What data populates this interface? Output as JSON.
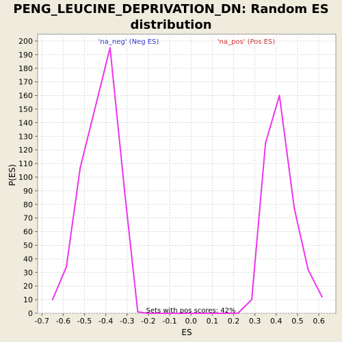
{
  "chart_data": {
    "type": "line",
    "title_line1": "PENG_LEUCINE_DEPRIVATION_DN: Random ES",
    "title_line2": "distribution",
    "xlabel": "ES",
    "ylabel": "P(ES)",
    "xlim": [
      -0.72,
      0.68
    ],
    "ylim": [
      0,
      205
    ],
    "x_ticks": [
      "-0.7",
      "-0.6",
      "-0.5",
      "-0.4",
      "-0.3",
      "-0.2",
      "-0.1",
      "0.0",
      "0.1",
      "0.2",
      "0.3",
      "0.4",
      "0.5",
      "0.6"
    ],
    "y_ticks": [
      "0",
      "10",
      "20",
      "30",
      "40",
      "50",
      "60",
      "70",
      "80",
      "90",
      "100",
      "110",
      "120",
      "130",
      "140",
      "150",
      "160",
      "170",
      "180",
      "190",
      "200"
    ],
    "grid": true,
    "legend": {
      "neg_label": "'na_neg' (Neg ES)",
      "pos_label": "'na_pos' (Pos ES)"
    },
    "annotation": "Sets with pos scores: 42%",
    "line_color": "#ee33ee",
    "series": [
      {
        "x": [
          -0.65,
          -0.585,
          -0.52,
          -0.38,
          -0.31,
          -0.25,
          -0.2,
          0.0,
          0.22,
          0.285,
          0.35,
          0.415,
          0.485,
          0.55,
          0.615
        ],
        "values": [
          10,
          34,
          107,
          195,
          87,
          1,
          0,
          0,
          0,
          10,
          125,
          160,
          77,
          32,
          12
        ]
      }
    ]
  }
}
